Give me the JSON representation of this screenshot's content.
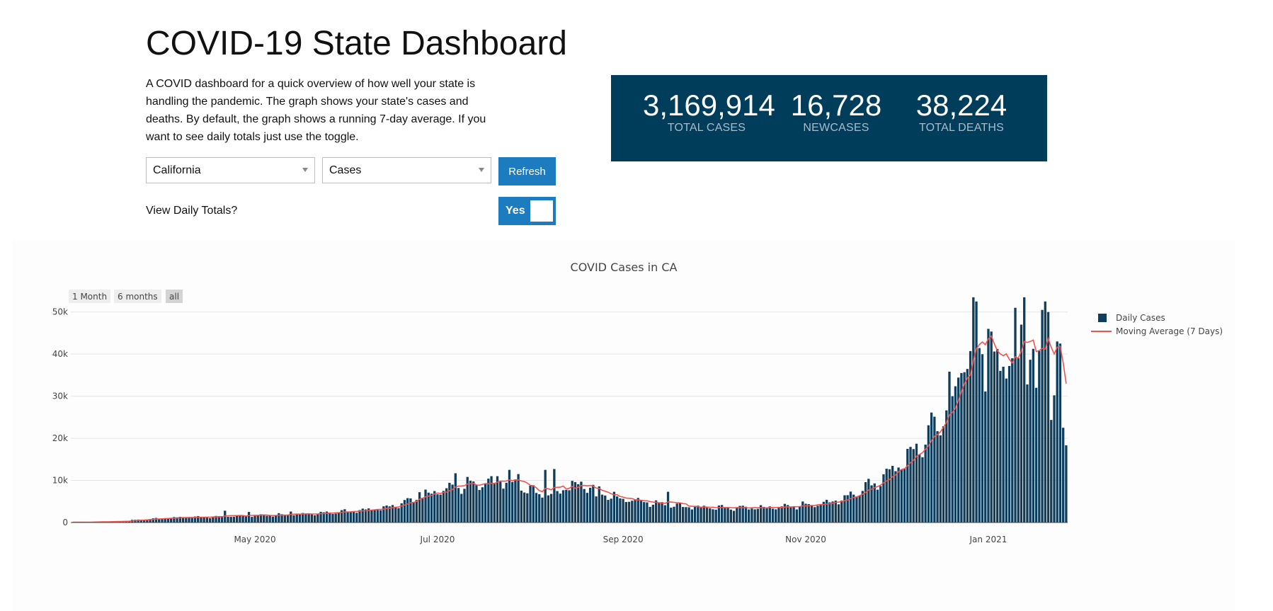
{
  "header": {
    "title": "COVID-19 State Dashboard",
    "description": "A COVID dashboard for a quick overview of how well your state is handling the pandemic. The graph shows your state's cases and deaths. By default, the graph shows a running 7-day average. If you want to see daily totals just use the toggle."
  },
  "controls": {
    "state_select": "California",
    "metric_select": "Cases",
    "refresh_label": "Refresh",
    "toggle_label": "View Daily Totals?",
    "toggle_value": "Yes"
  },
  "stats": [
    {
      "value": "3,169,914",
      "label": "TOTAL CASES"
    },
    {
      "value": "16,728",
      "label": "NEWCASES"
    },
    {
      "value": "38,224",
      "label": "TOTAL DEATHS"
    }
  ],
  "range_buttons": [
    "1 Month",
    "6 months",
    "all"
  ],
  "colors": {
    "bar": "#0f3d5c",
    "line": "#ef5350",
    "panel": "#003d5b",
    "button": "#1d7bbf"
  },
  "chart_data": {
    "type": "bar",
    "title": "COVID Cases in CA",
    "xlabel": "",
    "ylabel": "",
    "ylim": [
      0,
      56000
    ],
    "yticks": [
      0,
      10000,
      20000,
      30000,
      40000,
      50000
    ],
    "ytick_labels": [
      "0",
      "10k",
      "20k",
      "30k",
      "40k",
      "50k"
    ],
    "x_tick_labels": [
      "May 2020",
      "Jul 2020",
      "Sep 2020",
      "Nov 2020",
      "Jan 2021"
    ],
    "x_tick_days": [
      61,
      122,
      184,
      245,
      306
    ],
    "x_start": "2020-03-01",
    "x_end": "2021-01-27",
    "legend": [
      "Daily Cases",
      "Moving Average (7 Days)"
    ],
    "legend_position": "top-right",
    "daily_cases_keypoints": [
      [
        0,
        50
      ],
      [
        15,
        250
      ],
      [
        25,
        800
      ],
      [
        35,
        1200
      ],
      [
        45,
        1300
      ],
      [
        55,
        1500
      ],
      [
        65,
        1700
      ],
      [
        75,
        1900
      ],
      [
        85,
        2300
      ],
      [
        95,
        2800
      ],
      [
        105,
        3500
      ],
      [
        112,
        5000
      ],
      [
        118,
        6500
      ],
      [
        125,
        8000
      ],
      [
        133,
        9000
      ],
      [
        140,
        9500
      ],
      [
        145,
        9800
      ],
      [
        150,
        8500
      ],
      [
        155,
        7000
      ],
      [
        160,
        6000
      ],
      [
        165,
        8500
      ],
      [
        170,
        9000
      ],
      [
        175,
        8200
      ],
      [
        180,
        6000
      ],
      [
        190,
        5000
      ],
      [
        200,
        4000
      ],
      [
        210,
        3600
      ],
      [
        220,
        3500
      ],
      [
        230,
        3500
      ],
      [
        240,
        3800
      ],
      [
        250,
        4400
      ],
      [
        257,
        5500
      ],
      [
        262,
        7000
      ],
      [
        267,
        9000
      ],
      [
        272,
        11500
      ],
      [
        277,
        14000
      ],
      [
        282,
        17500
      ],
      [
        287,
        22000
      ],
      [
        292,
        28000
      ],
      [
        297,
        35000
      ],
      [
        302,
        43000
      ],
      [
        305,
        40000
      ],
      [
        308,
        37000
      ],
      [
        312,
        38000
      ],
      [
        316,
        41000
      ],
      [
        320,
        39000
      ],
      [
        324,
        35000
      ],
      [
        328,
        26000
      ],
      [
        332,
        21000
      ],
      [
        335,
        24000
      ],
      [
        338,
        17000
      ]
    ],
    "daily_cases_spikes": [
      [
        51,
        2800
      ],
      [
        59,
        2500
      ],
      [
        73,
        2600
      ],
      [
        116,
        7200
      ],
      [
        128,
        11700
      ],
      [
        142,
        11000
      ],
      [
        146,
        12500
      ],
      [
        149,
        11500
      ],
      [
        158,
        12500
      ],
      [
        161,
        12700
      ],
      [
        175,
        6200
      ],
      [
        199,
        7300
      ],
      [
        264,
        7500
      ],
      [
        269,
        7800
      ],
      [
        285,
        18500
      ],
      [
        290,
        20700
      ],
      [
        294,
        30000
      ],
      [
        297,
        35500
      ],
      [
        298,
        35700
      ],
      [
        301,
        53500
      ],
      [
        302,
        52500
      ],
      [
        306,
        46000
      ],
      [
        311,
        37000
      ],
      [
        314,
        39000
      ],
      [
        315,
        51000
      ],
      [
        317,
        47000
      ],
      [
        318,
        53500
      ],
      [
        322,
        32000
      ],
      [
        324,
        50500
      ],
      [
        325,
        52500
      ],
      [
        326,
        50000
      ],
      [
        329,
        43000
      ],
      [
        330,
        42500
      ],
      [
        333,
        23000
      ],
      [
        336,
        27000
      ],
      [
        337,
        17000
      ]
    ]
  }
}
